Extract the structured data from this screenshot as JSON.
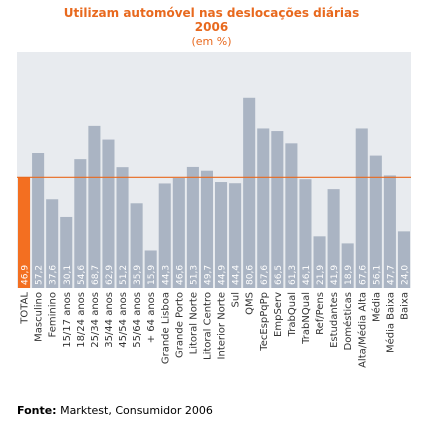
{
  "title_line1": "Utilizam automóvel nas deslocações diárias",
  "title_line2": "2006",
  "subtitle": "(em %)",
  "source_label": "Fonte:",
  "source_text": "Marktest, Consumidor 2006",
  "colors": {
    "highlight_bar": "#f36f21",
    "bar": "#aab4c3",
    "plot_bg": "#e8ebef",
    "reference_line": "#e8691e",
    "title": "#e8691e",
    "value_text": "#ffffff"
  },
  "chart_data": {
    "type": "bar",
    "title": "Utilizam automóvel nas deslocações diárias",
    "subtitle": "2006 (em %)",
    "categories": [
      "TOTAL",
      "Masculino",
      "Feminino",
      "15/17 anos",
      "18/24 anos",
      "25/34 anos",
      "35/44 anos",
      "45/54 anos",
      "55/64 anos",
      "+ 64 anos",
      "Grande Lisboa",
      "Grande Porto",
      "Litoral Norte",
      "Litoral Centro",
      "Interior Norte",
      "Sul",
      "QMS",
      "TecEspPqPp",
      "EmpServ",
      "TrabQual",
      "TrabNQual",
      "Ref/Pens",
      "Estudantes",
      "Domésticas",
      "Alta/Média Alta",
      "Média",
      "Média Baixa",
      "Baixa"
    ],
    "values": [
      46.9,
      57.2,
      37.6,
      30.1,
      54.6,
      68.7,
      62.9,
      51.2,
      35.9,
      15.9,
      44.3,
      46.6,
      51.3,
      49.7,
      44.9,
      44.4,
      80.6,
      67.6,
      66.5,
      61.3,
      46.1,
      21.9,
      41.9,
      18.9,
      67.6,
      56.1,
      47.7,
      24.0
    ],
    "value_labels": [
      "46,9",
      "57,2",
      "37,6",
      "30,1",
      "54,6",
      "68,7",
      "62,9",
      "51,2",
      "35,9",
      "15,9",
      "44,3",
      "46,6",
      "51,3",
      "49,7",
      "44,9",
      "44,4",
      "80,6",
      "67,6",
      "66,5",
      "61,3",
      "46,1",
      "21,9",
      "41,9",
      "18,9",
      "67,6",
      "56,1",
      "47,7",
      "24,0"
    ],
    "highlight_index": 0,
    "reference_line_value": 46.9,
    "ylim": [
      0,
      100
    ],
    "grid": false,
    "legend": "none"
  }
}
